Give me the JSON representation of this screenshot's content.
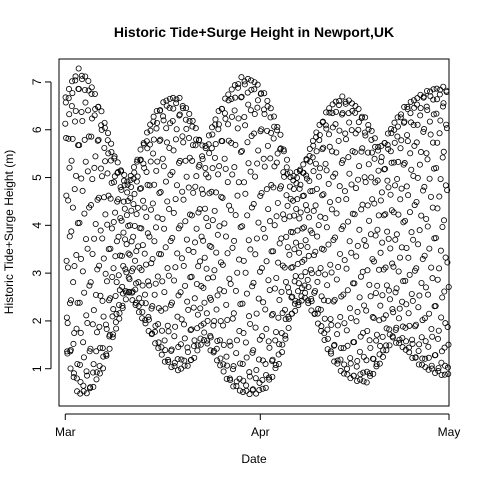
{
  "chart_data": {
    "type": "scatter",
    "title": "Historic Tide+Surge Height in Newport,UK",
    "xlabel": "Date",
    "ylabel": "Historic Tide+Surge Height (m)",
    "x_ticks": [
      {
        "label": "Mar",
        "value": "2015-03-01"
      },
      {
        "label": "Apr",
        "value": "2015-04-01"
      },
      {
        "label": "May",
        "value": "2015-05-01"
      }
    ],
    "y_ticks": [
      1,
      2,
      3,
      4,
      5,
      6,
      7
    ],
    "xlim": [
      "2015-02-28",
      "2015-05-01"
    ],
    "ylim": [
      0.22,
      7.48
    ],
    "grid": false,
    "legend": "none",
    "marker": "open-circle",
    "marker_color": "#000000",
    "series": [
      {
        "sampling": "hourly",
        "x_start": "2015-03-01",
        "x_end": "2015-04-30",
        "envelope": {
          "x": [
            "2015-03-01",
            "2015-03-03",
            "2015-03-05",
            "2015-03-07",
            "2015-03-09",
            "2015-03-11",
            "2015-03-13",
            "2015-03-15",
            "2015-03-17",
            "2015-03-19",
            "2015-03-21",
            "2015-03-23",
            "2015-03-25",
            "2015-03-27",
            "2015-03-29",
            "2015-03-31",
            "2015-04-02",
            "2015-04-04",
            "2015-04-06",
            "2015-04-08",
            "2015-04-10",
            "2015-04-12",
            "2015-04-14",
            "2015-04-16",
            "2015-04-18",
            "2015-04-20",
            "2015-04-22",
            "2015-04-24",
            "2015-04-26",
            "2015-04-28",
            "2015-04-30"
          ],
          "high": [
            6.7,
            7.3,
            7.0,
            6.3,
            5.4,
            4.9,
            5.6,
            6.3,
            6.65,
            6.7,
            6.3,
            5.6,
            6.3,
            6.8,
            7.1,
            7.05,
            6.7,
            6.0,
            5.0,
            5.3,
            6.0,
            6.5,
            6.7,
            6.55,
            6.2,
            5.6,
            6.1,
            6.5,
            6.7,
            6.85,
            6.9
          ],
          "low": [
            1.4,
            0.45,
            0.5,
            1.0,
            1.8,
            2.6,
            2.1,
            1.6,
            1.1,
            0.95,
            1.1,
            1.6,
            1.2,
            0.7,
            0.5,
            0.45,
            0.6,
            1.1,
            2.1,
            2.5,
            2.0,
            1.3,
            0.9,
            0.75,
            0.7,
            1.1,
            1.6,
            1.4,
            1.1,
            0.95,
            0.85
          ]
        }
      }
    ]
  }
}
